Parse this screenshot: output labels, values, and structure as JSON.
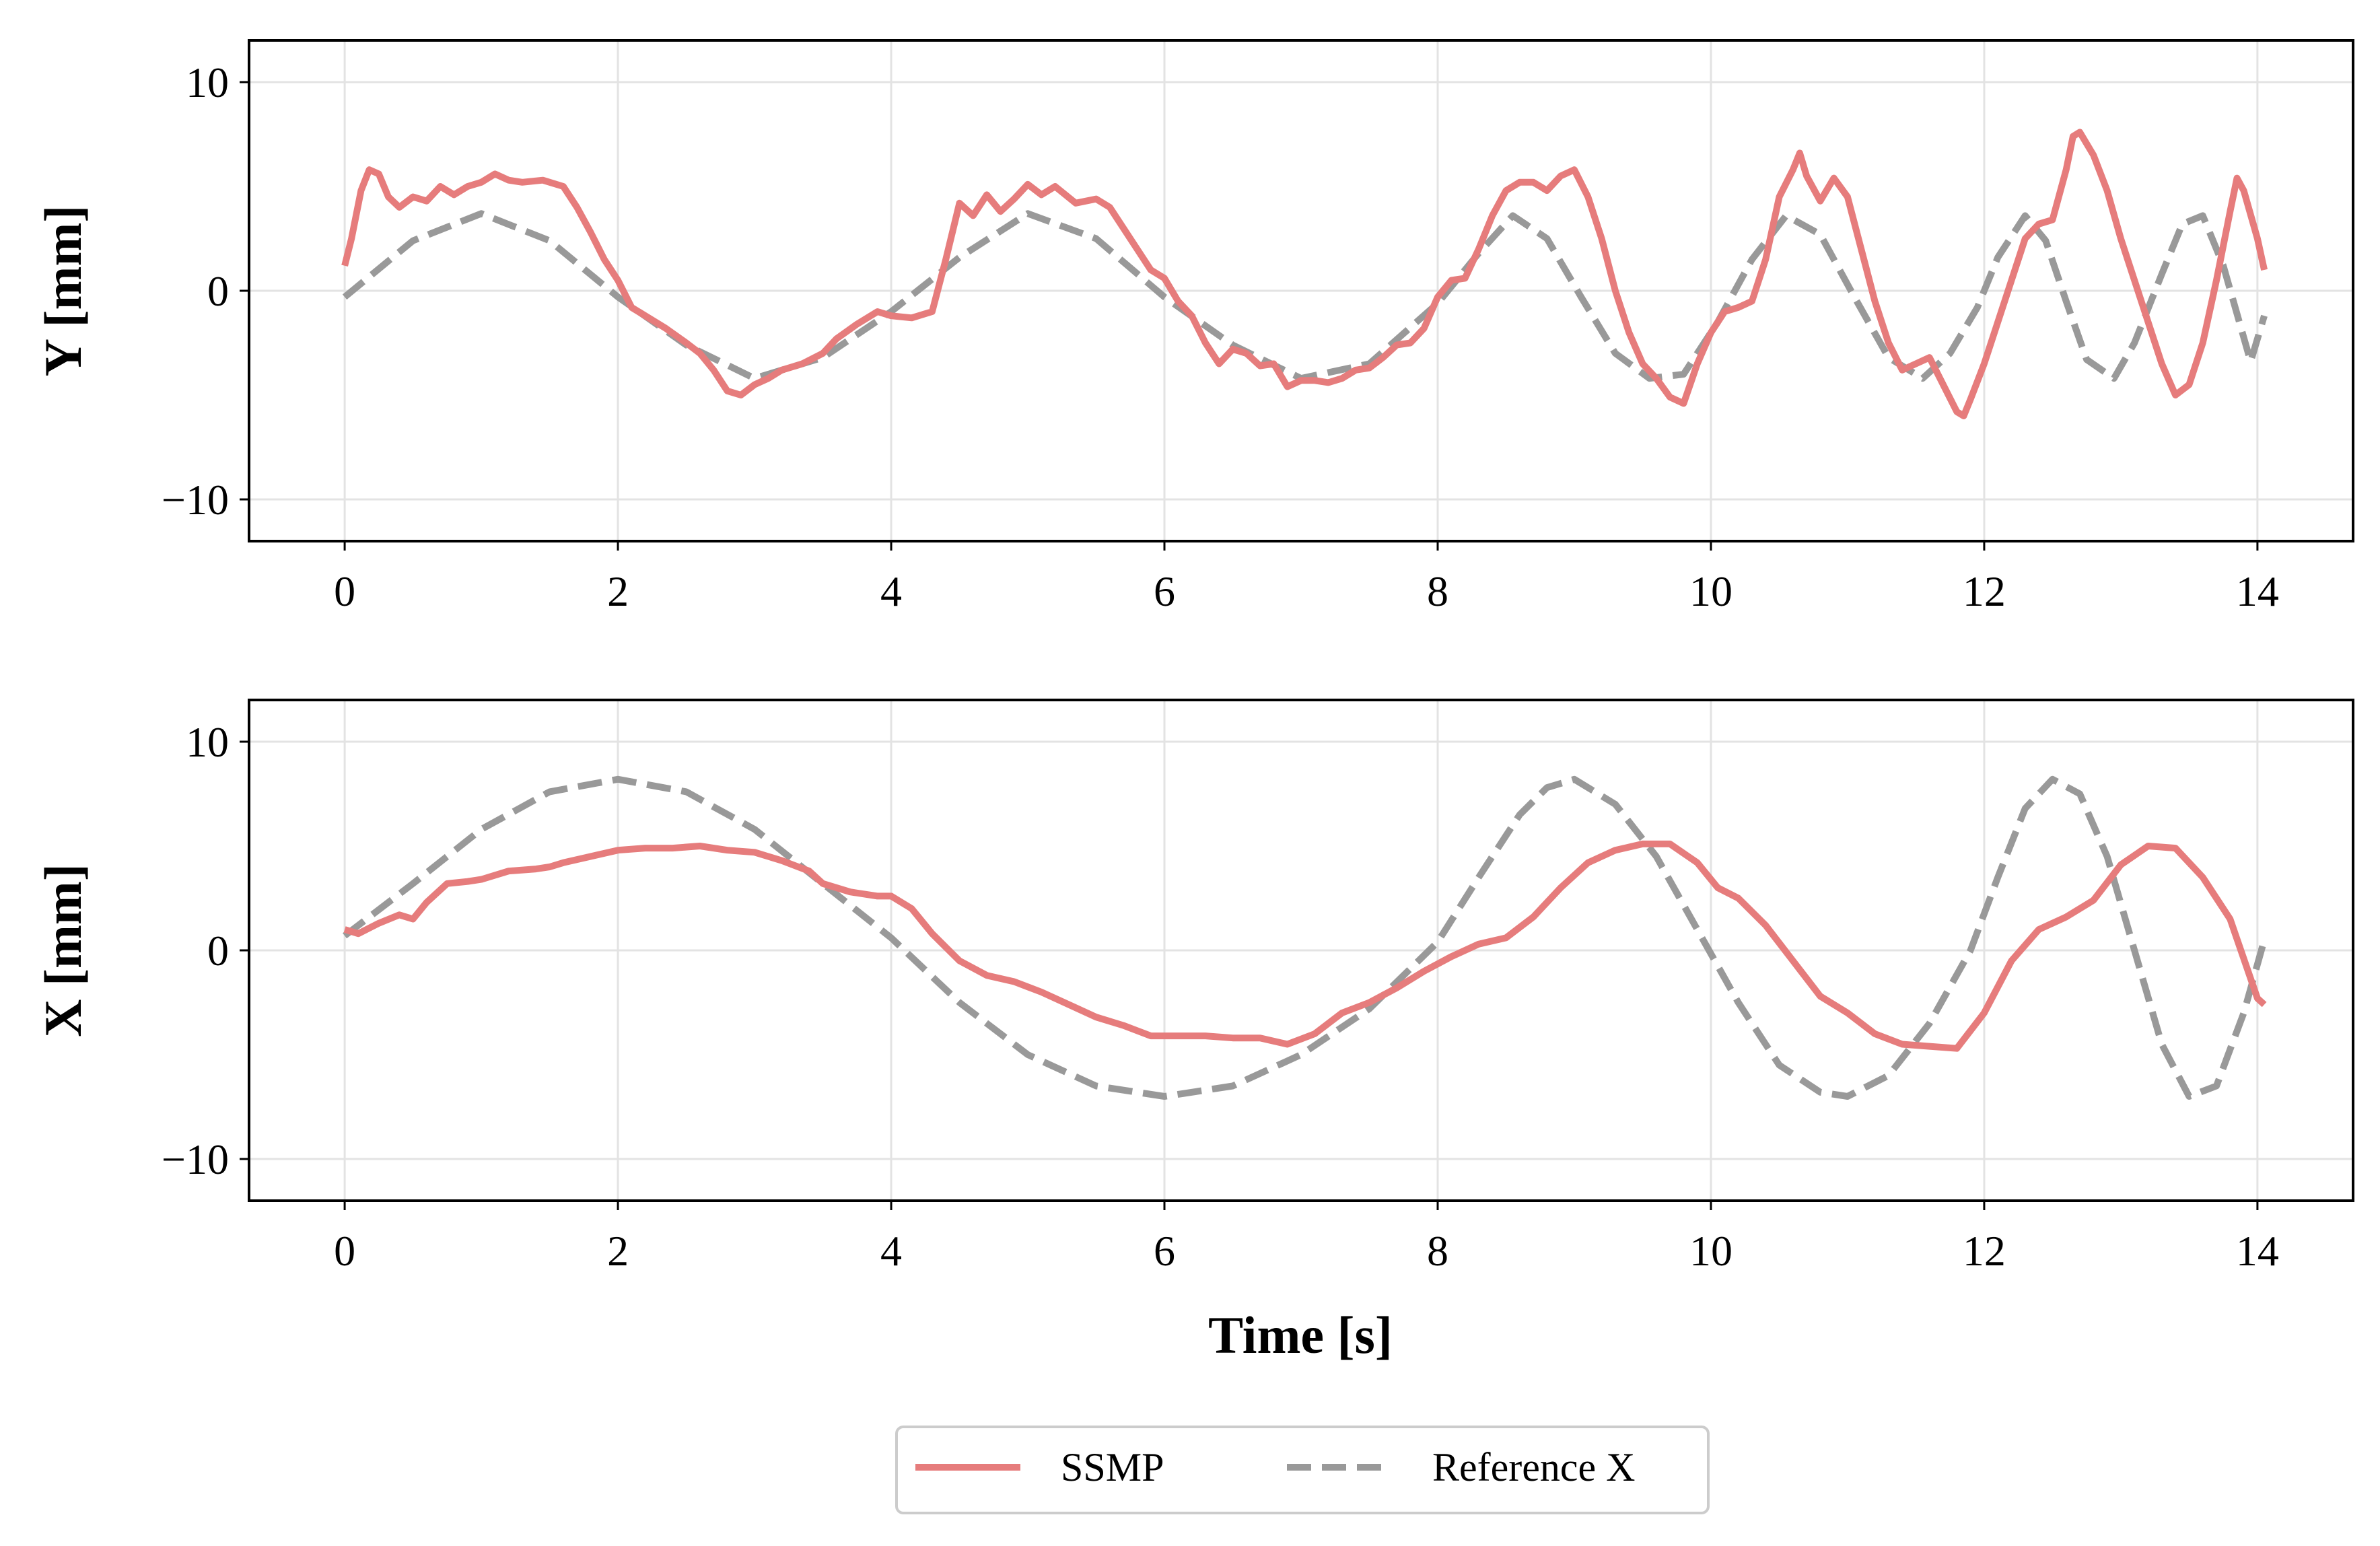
{
  "figure": {
    "xlabel": "Time [s]",
    "legend": {
      "placement": "bottom-center",
      "entries": [
        {
          "label": "SSMP",
          "color": "#e67c7c",
          "style": "solid"
        },
        {
          "label": "Reference X",
          "color": "#999999",
          "style": "dashed"
        }
      ]
    }
  },
  "chart_data": [
    {
      "type": "line",
      "ylabel": "Y [mm]",
      "xlabel": "",
      "xlim": [
        -0.7,
        14.7
      ],
      "ylim": [
        -12,
        12
      ],
      "xticks": [
        0,
        2,
        4,
        6,
        8,
        10,
        12,
        14
      ],
      "yticks": [
        -10,
        0,
        10
      ],
      "ytick_labels": [
        "−10",
        "0",
        "10"
      ],
      "grid": true,
      "series": [
        {
          "name": "SSMP",
          "color": "#e67c7c",
          "style": "solid",
          "x": [
            0,
            0.05,
            0.12,
            0.18,
            0.25,
            0.32,
            0.4,
            0.5,
            0.6,
            0.7,
            0.8,
            0.9,
            1.0,
            1.1,
            1.2,
            1.3,
            1.45,
            1.6,
            1.7,
            1.8,
            1.9,
            2.0,
            2.1,
            2.2,
            2.35,
            2.5,
            2.6,
            2.7,
            2.8,
            2.9,
            3.0,
            3.1,
            3.2,
            3.35,
            3.5,
            3.6,
            3.75,
            3.9,
            4.0,
            4.15,
            4.3,
            4.4,
            4.5,
            4.6,
            4.7,
            4.8,
            4.9,
            5.0,
            5.1,
            5.2,
            5.35,
            5.5,
            5.6,
            5.7,
            5.8,
            5.9,
            6.0,
            6.1,
            6.2,
            6.3,
            6.4,
            6.5,
            6.6,
            6.7,
            6.8,
            6.9,
            7.0,
            7.1,
            7.2,
            7.3,
            7.4,
            7.5,
            7.6,
            7.7,
            7.8,
            7.9,
            8.0,
            8.1,
            8.2,
            8.3,
            8.4,
            8.5,
            8.6,
            8.7,
            8.8,
            8.9,
            9.0,
            9.1,
            9.2,
            9.3,
            9.4,
            9.5,
            9.6,
            9.7,
            9.8,
            9.9,
            10.0,
            10.1,
            10.2,
            10.3,
            10.4,
            10.5,
            10.6,
            10.65,
            10.7,
            10.8,
            10.9,
            11.0,
            11.1,
            11.2,
            11.3,
            11.4,
            11.5,
            11.6,
            11.7,
            11.8,
            11.85,
            11.9,
            12.0,
            12.1,
            12.2,
            12.3,
            12.4,
            12.5,
            12.6,
            12.65,
            12.7,
            12.8,
            12.9,
            13.0,
            13.1,
            13.2,
            13.3,
            13.4,
            13.5,
            13.6,
            13.7,
            13.8,
            13.85,
            13.9,
            14.0,
            14.05
          ],
          "y": [
            1.2,
            2.5,
            4.8,
            5.8,
            5.6,
            4.5,
            4.0,
            4.5,
            4.3,
            5.0,
            4.6,
            5.0,
            5.2,
            5.6,
            5.3,
            5.2,
            5.3,
            5.0,
            4.0,
            2.8,
            1.5,
            0.5,
            -0.8,
            -1.2,
            -1.8,
            -2.5,
            -3.0,
            -3.8,
            -4.8,
            -5.0,
            -4.5,
            -4.2,
            -3.8,
            -3.5,
            -3.0,
            -2.3,
            -1.6,
            -1.0,
            -1.2,
            -1.3,
            -1.0,
            1.5,
            4.2,
            3.6,
            4.6,
            3.8,
            4.4,
            5.1,
            4.6,
            5.0,
            4.2,
            4.4,
            4.0,
            3.0,
            2.0,
            1.0,
            0.6,
            -0.5,
            -1.2,
            -2.5,
            -3.5,
            -2.8,
            -3.0,
            -3.6,
            -3.5,
            -4.6,
            -4.3,
            -4.3,
            -4.4,
            -4.2,
            -3.8,
            -3.7,
            -3.2,
            -2.6,
            -2.5,
            -1.8,
            -0.3,
            0.5,
            0.6,
            2.0,
            3.6,
            4.8,
            5.2,
            5.2,
            4.8,
            5.5,
            5.8,
            4.5,
            2.5,
            0.0,
            -2.0,
            -3.5,
            -4.2,
            -5.1,
            -5.4,
            -3.5,
            -2.0,
            -1.0,
            -0.8,
            -0.5,
            1.5,
            4.5,
            5.8,
            6.6,
            5.5,
            4.3,
            5.4,
            4.5,
            2.0,
            -0.5,
            -2.5,
            -3.8,
            -3.5,
            -3.2,
            -4.5,
            -5.8,
            -6.0,
            -5.2,
            -3.5,
            -1.5,
            0.5,
            2.5,
            3.2,
            3.4,
            5.8,
            7.4,
            7.6,
            6.5,
            4.8,
            2.5,
            0.5,
            -1.5,
            -3.5,
            -5.0,
            -4.5,
            -2.5,
            0.5,
            3.8,
            5.4,
            4.8,
            2.5,
            1.0
          ]
        },
        {
          "name": "Reference X",
          "color": "#999999",
          "style": "dashed",
          "x": [
            0,
            0.5,
            1.0,
            1.5,
            2.0,
            2.5,
            3.0,
            3.5,
            4.0,
            4.5,
            5.0,
            5.5,
            6.0,
            6.5,
            7.0,
            7.5,
            8.0,
            8.3,
            8.55,
            8.8,
            9.05,
            9.3,
            9.55,
            9.8,
            10.05,
            10.3,
            10.55,
            10.8,
            11.05,
            11.3,
            11.55,
            11.75,
            11.95,
            12.1,
            12.3,
            12.45,
            12.6,
            12.75,
            12.95,
            13.1,
            13.3,
            13.45,
            13.6,
            13.75,
            13.95,
            14.05
          ],
          "y": [
            -0.3,
            2.4,
            3.7,
            2.4,
            -0.3,
            -2.6,
            -4.2,
            -3.2,
            -1.0,
            1.6,
            3.7,
            2.5,
            -0.3,
            -2.6,
            -4.2,
            -3.5,
            -0.6,
            1.8,
            3.6,
            2.5,
            -0.3,
            -3.0,
            -4.2,
            -4.0,
            -1.5,
            1.5,
            3.6,
            2.7,
            -0.3,
            -3.2,
            -4.2,
            -3.0,
            -0.8,
            1.6,
            3.6,
            2.4,
            -0.5,
            -3.3,
            -4.2,
            -2.5,
            0.8,
            3.2,
            3.6,
            1.2,
            -3.4,
            -1.2
          ]
        }
      ]
    },
    {
      "type": "line",
      "ylabel": "X [mm]",
      "xlabel": "Time [s]",
      "xlim": [
        -0.7,
        14.7
      ],
      "ylim": [
        -12,
        12
      ],
      "xticks": [
        0,
        2,
        4,
        6,
        8,
        10,
        12,
        14
      ],
      "yticks": [
        -10,
        0,
        10
      ],
      "ytick_labels": [
        "−10",
        "0",
        "10"
      ],
      "grid": true,
      "series": [
        {
          "name": "SSMP",
          "color": "#e67c7c",
          "style": "solid",
          "x": [
            0,
            0.1,
            0.25,
            0.4,
            0.5,
            0.6,
            0.75,
            0.9,
            1.0,
            1.2,
            1.4,
            1.5,
            1.6,
            1.8,
            2.0,
            2.2,
            2.4,
            2.6,
            2.8,
            3.0,
            3.2,
            3.4,
            3.5,
            3.7,
            3.9,
            4.0,
            4.15,
            4.3,
            4.5,
            4.7,
            4.9,
            5.1,
            5.3,
            5.5,
            5.7,
            5.9,
            6.1,
            6.3,
            6.5,
            6.7,
            6.9,
            7.1,
            7.3,
            7.5,
            7.7,
            7.9,
            8.1,
            8.3,
            8.5,
            8.7,
            8.9,
            9.1,
            9.3,
            9.5,
            9.7,
            9.9,
            10.05,
            10.2,
            10.4,
            10.6,
            10.8,
            11.0,
            11.2,
            11.4,
            11.6,
            11.8,
            12.0,
            12.2,
            12.4,
            12.6,
            12.8,
            13.0,
            13.2,
            13.4,
            13.6,
            13.8,
            14.0,
            14.05
          ],
          "y": [
            1.0,
            0.8,
            1.3,
            1.7,
            1.5,
            2.3,
            3.2,
            3.3,
            3.4,
            3.8,
            3.9,
            4.0,
            4.2,
            4.5,
            4.8,
            4.9,
            4.9,
            5.0,
            4.8,
            4.7,
            4.3,
            3.8,
            3.2,
            2.8,
            2.6,
            2.6,
            2.0,
            0.8,
            -0.5,
            -1.2,
            -1.5,
            -2.0,
            -2.6,
            -3.2,
            -3.6,
            -4.1,
            -4.1,
            -4.1,
            -4.2,
            -4.2,
            -4.5,
            -4.0,
            -3.0,
            -2.5,
            -1.8,
            -1.0,
            -0.3,
            0.3,
            0.6,
            1.6,
            3.0,
            4.2,
            4.8,
            5.1,
            5.1,
            4.2,
            3.0,
            2.5,
            1.2,
            -0.5,
            -2.2,
            -3.0,
            -4.0,
            -4.5,
            -4.6,
            -4.7,
            -3.0,
            -0.5,
            1.0,
            1.6,
            2.4,
            4.1,
            5.0,
            4.9,
            3.5,
            1.5,
            -2.3,
            -2.6
          ]
        },
        {
          "name": "Reference X",
          "color": "#999999",
          "style": "dashed",
          "x": [
            0,
            0.5,
            1.0,
            1.5,
            2.0,
            2.5,
            3.0,
            3.5,
            4.0,
            4.5,
            5.0,
            5.5,
            6.0,
            6.5,
            7.0,
            7.5,
            8.0,
            8.3,
            8.6,
            8.8,
            9.0,
            9.3,
            9.6,
            9.9,
            10.2,
            10.5,
            10.8,
            11.0,
            11.3,
            11.6,
            11.9,
            12.1,
            12.3,
            12.5,
            12.7,
            12.9,
            13.1,
            13.3,
            13.5,
            13.7,
            13.9,
            14.05
          ],
          "y": [
            0.7,
            3.2,
            5.8,
            7.6,
            8.2,
            7.6,
            5.8,
            3.2,
            0.6,
            -2.5,
            -5.0,
            -6.5,
            -7.0,
            -6.5,
            -5.0,
            -2.8,
            0.4,
            3.5,
            6.5,
            7.8,
            8.2,
            7.0,
            4.5,
            1.0,
            -2.5,
            -5.5,
            -6.8,
            -7.0,
            -6.0,
            -3.5,
            0.0,
            3.5,
            6.8,
            8.2,
            7.5,
            4.5,
            0.0,
            -4.5,
            -7.0,
            -6.5,
            -3.0,
            0.5
          ]
        }
      ]
    }
  ]
}
